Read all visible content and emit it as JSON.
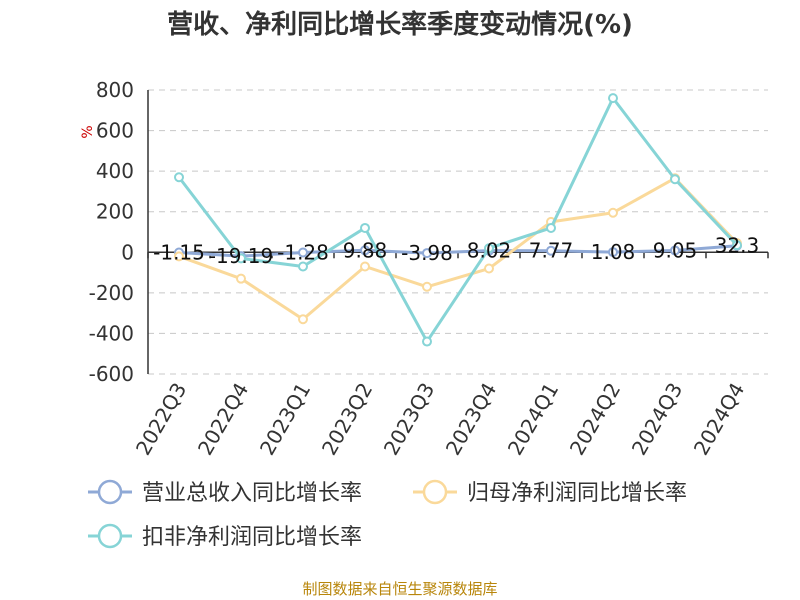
{
  "chart_data": {
    "type": "line",
    "title": "营收、净利同比增长率季度变动情况(%)",
    "ylabel": "%",
    "categories": [
      "2022Q3",
      "2022Q4",
      "2023Q1",
      "2023Q2",
      "2023Q3",
      "2023Q4",
      "2024Q1",
      "2024Q2",
      "2024Q3",
      "2024Q4"
    ],
    "ylim": [
      -600,
      800
    ],
    "yticks": [
      800,
      600,
      400,
      200,
      0,
      -200,
      -400,
      -600
    ],
    "grid": true,
    "legend_position": "bottom",
    "series": [
      {
        "name": "营业总收入同比增长率",
        "color": "#8fa9d6",
        "values": [
          -1.15,
          -19.19,
          -1.28,
          9.88,
          -3.98,
          8.02,
          7.77,
          1.08,
          9.05,
          32.3
        ],
        "labels": [
          "-1.15",
          "-19.19",
          "-1.28",
          "9.88",
          "-3.98",
          "8.02",
          "7.77",
          "1.08",
          "9.05",
          "32.3"
        ]
      },
      {
        "name": "归母净利润同比增长率",
        "color": "#fad99a",
        "values": [
          -20,
          -130,
          -330,
          -70,
          -170,
          -80,
          150,
          195,
          365,
          45
        ]
      },
      {
        "name": "扣非净利润同比增长率",
        "color": "#86d4d6",
        "values": [
          370,
          -30,
          -70,
          120,
          -440,
          20,
          120,
          760,
          360,
          35
        ]
      }
    ]
  },
  "source": "制图数据来自恒生聚源数据库"
}
